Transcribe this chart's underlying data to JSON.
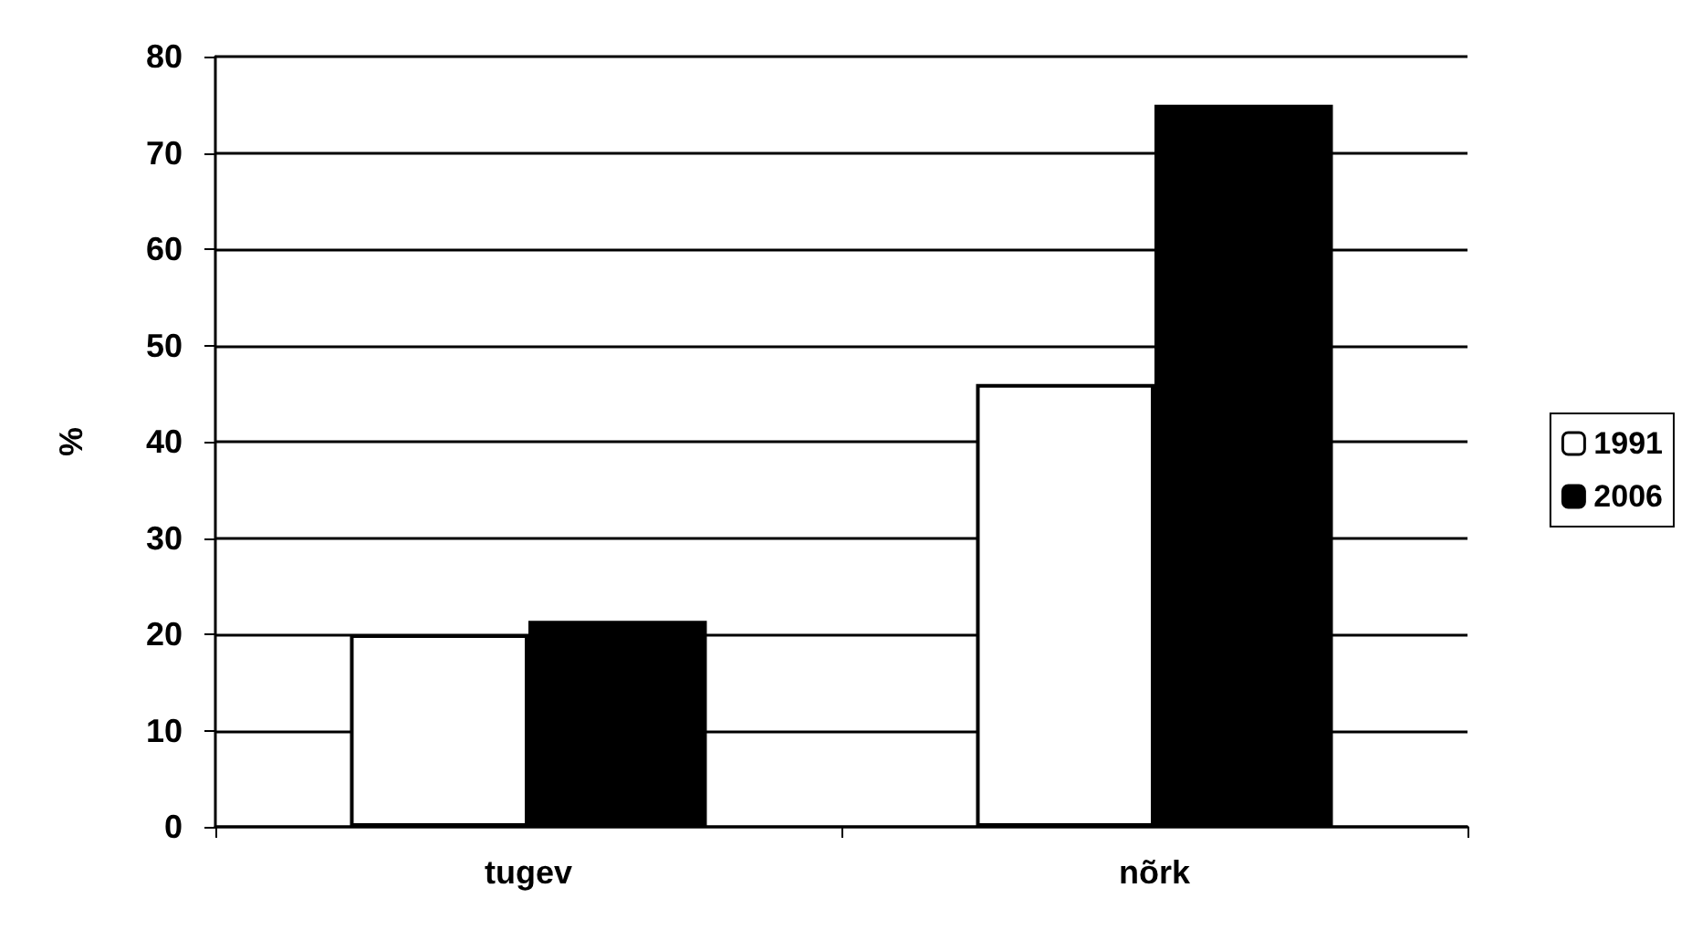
{
  "chart_data": {
    "type": "bar",
    "ylabel": "%",
    "categories": [
      "tugev",
      "nõrk"
    ],
    "series": [
      {
        "name": "1991",
        "color": "#ffffff",
        "values": [
          20,
          46
        ]
      },
      {
        "name": "2006",
        "color": "#000000",
        "values": [
          21.4,
          75
        ]
      }
    ],
    "ylim": [
      0,
      80
    ],
    "yticks": [
      0,
      10,
      20,
      30,
      40,
      50,
      60,
      70,
      80
    ],
    "grid": "y",
    "legend": "right"
  }
}
